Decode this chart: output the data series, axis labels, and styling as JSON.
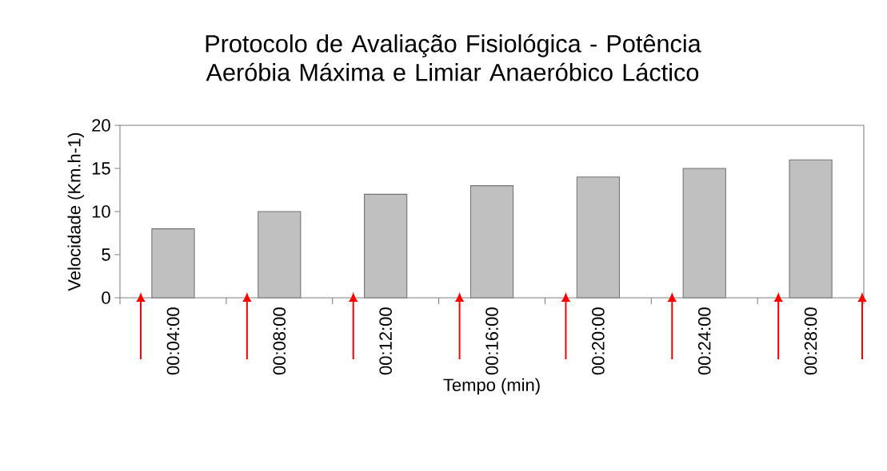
{
  "chart_data": {
    "type": "bar",
    "title": "Protocolo de Avaliação Fisiológica - Potência Aeróbia Máxima e Limiar Anaeróbico Láctico",
    "xlabel": "Tempo (min)",
    "ylabel": "Velocidade (Km.h-1)",
    "categories": [
      "00:04:00",
      "00:08:00",
      "00:12:00",
      "00:16:00",
      "00:20:00",
      "00:24:00",
      "00:28:00"
    ],
    "values": [
      8,
      10,
      12,
      13,
      14,
      15,
      16
    ],
    "color": "#c0c0c0",
    "ylim": [
      0,
      20
    ],
    "yticks": [
      0,
      5,
      10,
      15,
      20
    ]
  }
}
